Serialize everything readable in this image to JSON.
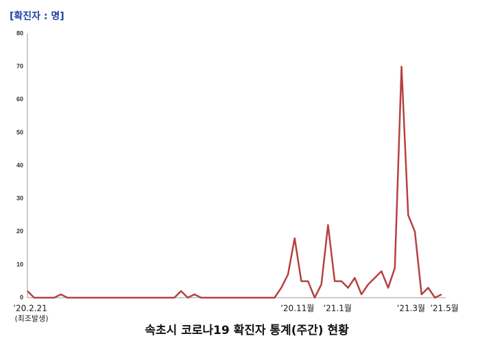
{
  "chart_data": {
    "type": "line",
    "title": "속초시 코로나19 확진자 통계(주간) 현황",
    "y_label": "[확진자 : 명]",
    "annotation": "(최조발생)",
    "categories": [
      "’20.2.21",
      null,
      null,
      null,
      null,
      null,
      null,
      null,
      null,
      null,
      null,
      null,
      null,
      null,
      null,
      null,
      null,
      null,
      null,
      null,
      null,
      null,
      null,
      null,
      null,
      null,
      null,
      null,
      null,
      null,
      null,
      null,
      null,
      null,
      null,
      null,
      null,
      null,
      null,
      null,
      "’20.11월",
      null,
      null,
      null,
      null,
      null,
      "’21.1월",
      null,
      null,
      null,
      null,
      null,
      null,
      null,
      null,
      null,
      null,
      "’21.3월",
      null,
      null,
      null,
      null,
      "’21.5월"
    ],
    "series": [
      {
        "name": "확진자",
        "color": "#b5403f",
        "values": [
          2,
          0,
          0,
          0,
          0,
          1,
          0,
          0,
          0,
          0,
          0,
          0,
          0,
          0,
          0,
          0,
          0,
          0,
          0,
          0,
          0,
          0,
          0,
          2,
          0,
          1,
          0,
          0,
          0,
          0,
          0,
          0,
          0,
          0,
          0,
          0,
          0,
          0,
          3,
          7,
          18,
          5,
          5,
          0,
          4,
          22,
          5,
          5,
          3,
          6,
          1,
          4,
          6,
          8,
          3,
          9,
          70,
          25,
          20,
          1,
          3,
          0,
          1
        ]
      }
    ],
    "ylim": [
      0,
      80
    ],
    "yticks": [
      0,
      10,
      20,
      30,
      40,
      50,
      60,
      70,
      80
    ],
    "grid": false
  }
}
